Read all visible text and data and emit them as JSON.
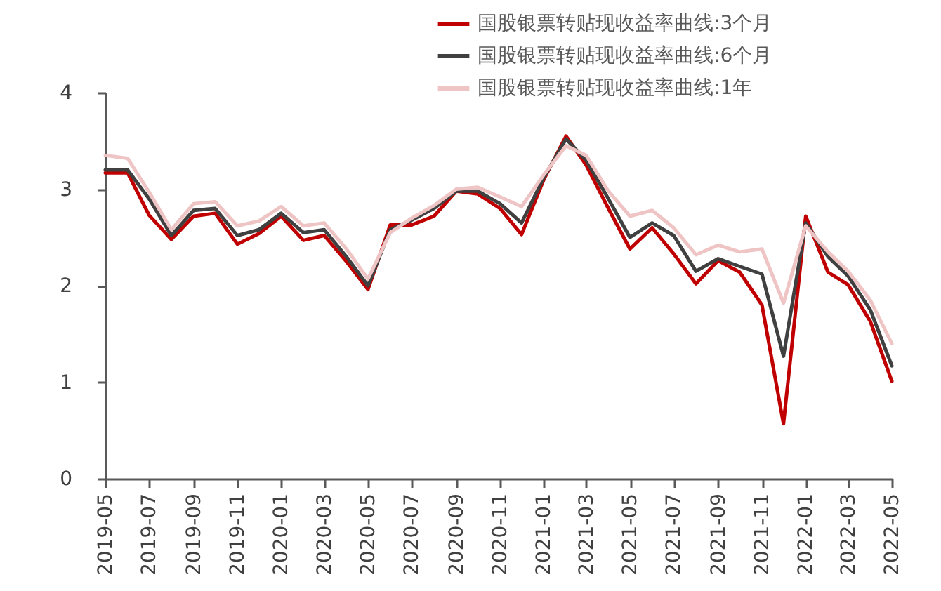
{
  "chart_data": {
    "type": "line",
    "x": [
      "2019-05",
      "2019-06",
      "2019-07",
      "2019-08",
      "2019-09",
      "2019-10",
      "2019-11",
      "2019-12",
      "2020-01",
      "2020-02",
      "2020-03",
      "2020-04",
      "2020-05",
      "2020-06",
      "2020-07",
      "2020-08",
      "2020-09",
      "2020-10",
      "2020-11",
      "2020-12",
      "2021-01",
      "2021-02",
      "2021-03",
      "2021-04",
      "2021-05",
      "2021-06",
      "2021-07",
      "2021-08",
      "2021-09",
      "2021-10",
      "2021-11",
      "2021-12",
      "2022-01",
      "2022-02",
      "2022-03",
      "2022-04",
      "2022-05"
    ],
    "series": [
      {
        "name": "国股银票转贴现收益率曲线:3个月",
        "color": "#c00000",
        "values": [
          3.17,
          3.17,
          2.73,
          2.48,
          2.72,
          2.75,
          2.43,
          2.54,
          2.72,
          2.47,
          2.52,
          2.25,
          1.96,
          2.63,
          2.63,
          2.72,
          2.98,
          2.95,
          2.8,
          2.53,
          3.1,
          3.55,
          3.25,
          2.8,
          2.38,
          2.6,
          2.33,
          2.02,
          2.26,
          2.14,
          1.8,
          0.57,
          2.72,
          2.14,
          2.01,
          1.63,
          1.01
        ]
      },
      {
        "name": "国股银票转贴现收益率曲线:6个月",
        "color": "#404040",
        "values": [
          3.2,
          3.2,
          2.9,
          2.52,
          2.78,
          2.8,
          2.52,
          2.58,
          2.75,
          2.55,
          2.58,
          2.3,
          2.0,
          2.58,
          2.68,
          2.8,
          2.98,
          2.98,
          2.85,
          2.65,
          3.12,
          3.52,
          3.3,
          2.9,
          2.5,
          2.65,
          2.52,
          2.15,
          2.28,
          2.2,
          2.12,
          1.27,
          2.65,
          2.3,
          2.1,
          1.75,
          1.17
        ]
      },
      {
        "name": "国股银票转贴现收益率曲线:1年",
        "color": "#efc4c4",
        "values": [
          3.35,
          3.32,
          2.97,
          2.58,
          2.85,
          2.87,
          2.62,
          2.67,
          2.82,
          2.62,
          2.65,
          2.38,
          2.07,
          2.55,
          2.7,
          2.83,
          3.0,
          3.02,
          2.92,
          2.82,
          3.15,
          3.45,
          3.35,
          2.98,
          2.72,
          2.78,
          2.6,
          2.32,
          2.42,
          2.35,
          2.38,
          1.82,
          2.62,
          2.35,
          2.15,
          1.85,
          1.4
        ]
      }
    ],
    "xlim": [
      "2019-05",
      "2022-05"
    ],
    "xticks": [
      "2019-05",
      "2019-07",
      "2019-09",
      "2019-11",
      "2020-01",
      "2020-03",
      "2020-05",
      "2020-07",
      "2020-09",
      "2020-11",
      "2021-01",
      "2021-03",
      "2021-05",
      "2021-07",
      "2021-09",
      "2021-11",
      "2022-01",
      "2022-03",
      "2022-05"
    ],
    "ylim": [
      0,
      4
    ],
    "yticks": [
      0,
      1,
      2,
      3,
      4
    ],
    "grid": false,
    "legend": "top",
    "marker": "none",
    "line_style": "solid"
  }
}
